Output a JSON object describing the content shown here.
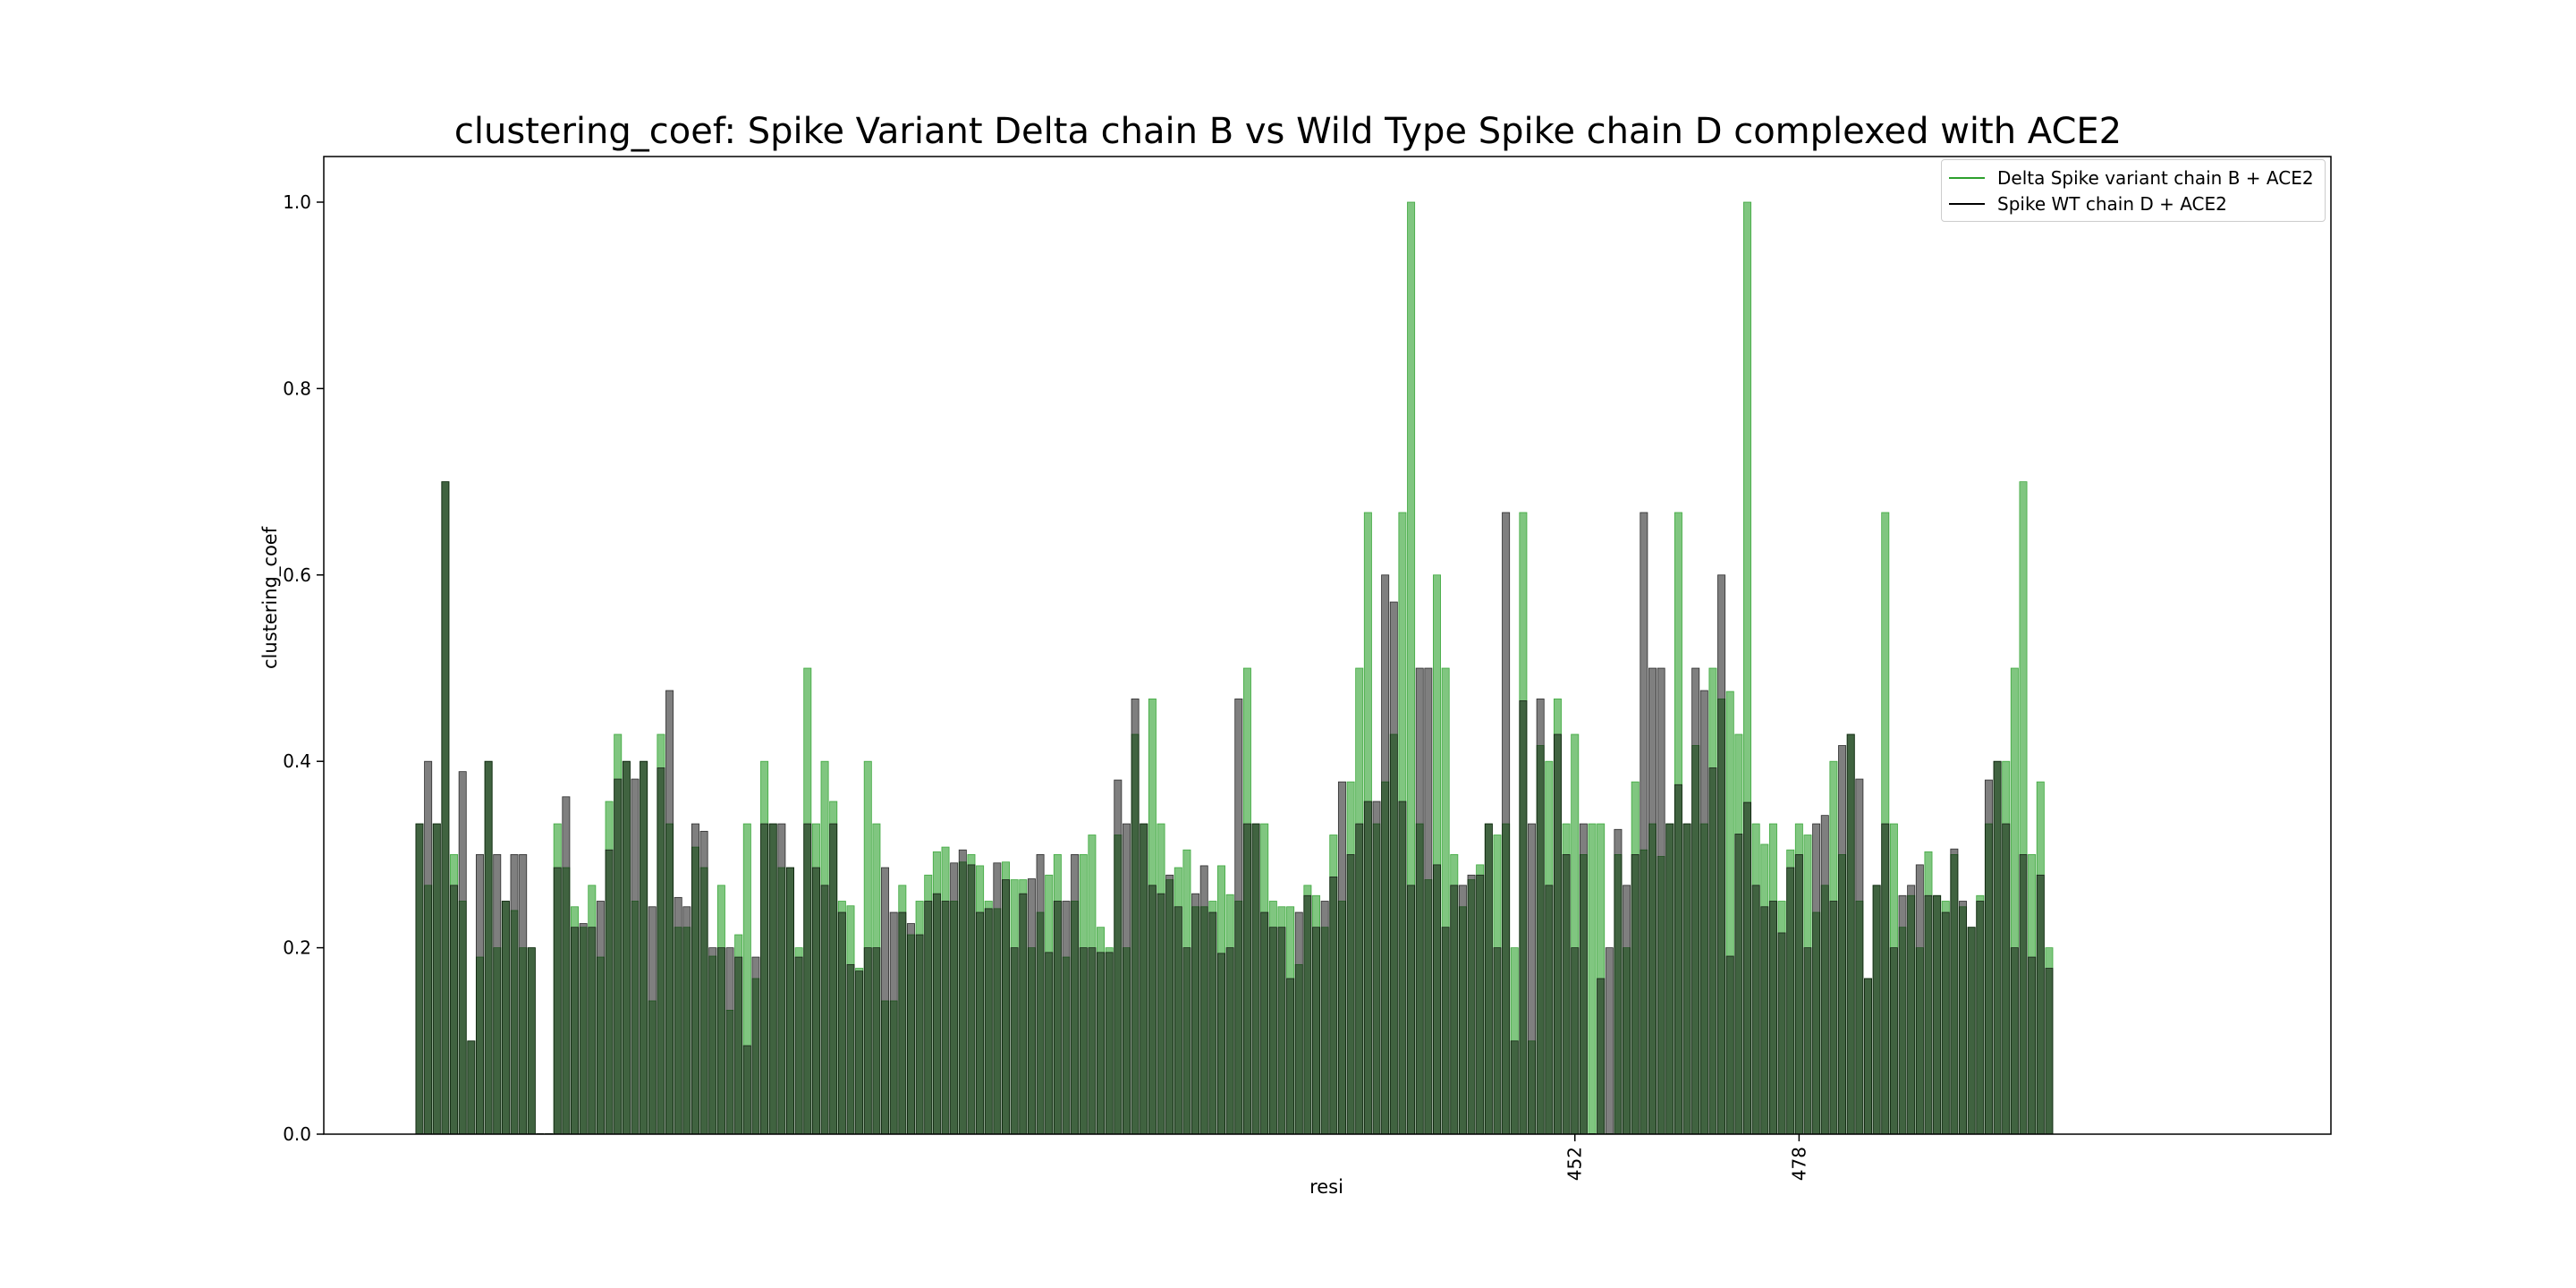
{
  "chart_data": {
    "type": "bar",
    "title": "clustering_coef: Spike Variant Delta chain B vs Wild Type Spike chain D complexed with ACE2",
    "xlabel": "resi",
    "ylabel": "clustering_coef",
    "ylim": [
      0,
      1.05
    ],
    "yticks": [
      "0.0",
      "0.2",
      "0.4",
      "0.6",
      "0.8",
      "1.0"
    ],
    "xticks": [
      {
        "label": "452",
        "index": 134
      },
      {
        "label": "478",
        "index": 160
      }
    ],
    "legend_position": "top-right",
    "n_slots": 212,
    "series": [
      {
        "name": "Delta Spike variant chain B + ACE2",
        "color": "#2ca02c",
        "alpha": 0.6,
        "values": [
          0.333,
          0.267,
          0.333,
          0.7,
          0.3,
          0.25,
          0.1,
          0.19,
          0.4,
          0.2,
          0.25,
          0.24,
          0.2,
          0.2,
          0,
          0,
          0.333,
          0.286,
          0.244,
          0.222,
          0.267,
          0.19,
          0.357,
          0.429,
          0.4,
          0.25,
          0.4,
          0.143,
          0.429,
          0.333,
          0.222,
          0.222,
          0.308,
          0.286,
          0.191,
          0.267,
          0.133,
          0.214,
          0.333,
          0.167,
          0.4,
          0.333,
          0.286,
          0.286,
          0.2,
          0.5,
          0.333,
          0.4,
          0.357,
          0.25,
          0.245,
          0.178,
          0.4,
          0.333,
          0.143,
          0.143,
          0.267,
          0.214,
          0.25,
          0.278,
          0.303,
          0.308,
          0.25,
          0.292,
          0.3,
          0.288,
          0.25,
          0.242,
          0.292,
          0.273,
          0.273,
          0.2,
          0.238,
          0.278,
          0.3,
          0.19,
          0.25,
          0.3,
          0.321,
          0.222,
          0.2,
          0.321,
          0.2,
          0.429,
          0.333,
          0.467,
          0.333,
          0.273,
          0.286,
          0.305,
          0.244,
          0.244,
          0.25,
          0.288,
          0.257,
          0.25,
          0.5,
          0.333,
          0.333,
          0.25,
          0.244,
          0.244,
          0.182,
          0.267,
          0.256,
          0.222,
          0.321,
          0.25,
          0.378,
          0.5,
          0.667,
          0.333,
          0.378,
          0.429,
          0.667,
          1.0,
          0.333,
          0.273,
          0.6,
          0.5,
          0.3,
          0.244,
          0.273,
          0.289,
          0.333,
          0.321,
          0.333,
          0.2,
          0.667,
          0.1,
          0.417,
          0.4,
          0.467,
          0.333,
          0.429,
          0.3,
          0.333,
          0.333,
          0,
          0.3,
          0.2,
          0.378,
          0.305,
          0.333,
          0.298,
          0.333,
          0.667,
          0.333,
          0.417,
          0.333,
          0.5,
          0.467,
          0.475,
          0.429,
          1.0,
          0.333,
          0.311,
          0.333,
          0.25,
          0.305,
          0.333,
          0.321,
          0.238,
          0.267,
          0.4,
          0.3,
          0.429,
          0.25,
          0.167,
          0.267,
          0.667,
          0.333,
          0.222,
          0.256,
          0.2,
          0.303,
          0.256,
          0.25,
          0.3,
          0.244,
          0.222,
          0.256,
          0.333,
          0.4,
          0.4,
          0.5,
          0.7,
          0.3,
          0.378,
          0.2
        ]
      },
      {
        "name": "Spike WT chain D + ACE2",
        "color": "#000000",
        "alpha": 0.5,
        "values": [
          0.333,
          0.4,
          0.333,
          0.7,
          0.267,
          0.389,
          0.1,
          0.3,
          0.4,
          0.3,
          0.25,
          0.3,
          0.3,
          0.2,
          0,
          0,
          0.286,
          0.362,
          0.222,
          0.226,
          0.222,
          0.25,
          0.305,
          0.381,
          0.4,
          0.381,
          0.4,
          0.244,
          0.393,
          0.476,
          0.254,
          0.244,
          0.333,
          0.325,
          0.2,
          0.2,
          0.2,
          0.19,
          0.095,
          0.19,
          0.333,
          0.333,
          0.333,
          0.286,
          0.19,
          0.333,
          0.286,
          0.267,
          0.333,
          0.238,
          0.182,
          0.175,
          0.2,
          0.2,
          0.286,
          0.238,
          0.238,
          0.226,
          0.214,
          0.25,
          0.258,
          0.25,
          0.291,
          0.305,
          0.289,
          0.238,
          0.242,
          0.291,
          0.273,
          0.2,
          0.258,
          0.274,
          0.3,
          0.195,
          0.25,
          0.25,
          0.3,
          0.2,
          0.2,
          0.195,
          0.195,
          0.38,
          0.333,
          0.467,
          0.333,
          0.267,
          0.258,
          0.278,
          0.244,
          0.2,
          0.258,
          0.288,
          0.238,
          0.194,
          0.2,
          0.467,
          0.333,
          0.333,
          0.238,
          0.222,
          0.222,
          0.167,
          0.238,
          0.256,
          0.222,
          0.25,
          0.276,
          0.378,
          0.3,
          0.333,
          0.357,
          0.357,
          0.6,
          0.571,
          0.357,
          0.267,
          0.5,
          0.5,
          0.289,
          0.222,
          0.267,
          0.267,
          0.278,
          0.278,
          0.333,
          0.2,
          0.667,
          0.1,
          0.465,
          0.333,
          0.467,
          0.267,
          0.429,
          0.3,
          0.2,
          0.333,
          0,
          0.167,
          0.2,
          0.327,
          0.267,
          0.3,
          0.667,
          0.5,
          0.5,
          0.333,
          0.375,
          0.333,
          0.5,
          0.476,
          0.393,
          0.6,
          0.191,
          0.322,
          0.356,
          0.267,
          0.244,
          0.25,
          0.216,
          0.286,
          0.3,
          0.2,
          0.333,
          0.342,
          0.25,
          0.417,
          0.429,
          0.381,
          0.167,
          0.267,
          0.333,
          0.2,
          0.256,
          0.267,
          0.289,
          0.256,
          0.256,
          0.238,
          0.306,
          0.25,
          0.222,
          0.25,
          0.38,
          0.4,
          0.333,
          0.2,
          0.3,
          0.19,
          0.278,
          0.178
        ]
      }
    ]
  }
}
